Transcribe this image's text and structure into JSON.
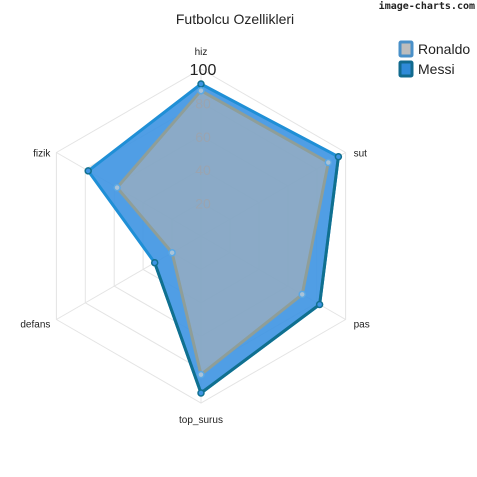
{
  "watermark": "image-charts.com",
  "chart_data": {
    "type": "radar",
    "title": "Futbolcu Ozellikleri",
    "axes": [
      "hiz",
      "sut",
      "pas",
      "top_surus",
      "defans",
      "fizik"
    ],
    "rlim": [
      0,
      100
    ],
    "r_ticks": [
      20,
      40,
      60,
      80,
      100
    ],
    "grid": true,
    "legend_position": "top-right",
    "series": [
      {
        "name": "Ronaldo",
        "values": [
          87,
          88,
          70,
          83,
          20,
          58
        ],
        "fill_color": "#b3b3b3",
        "stroke_color": "#8f9e98"
      },
      {
        "name": "Messi",
        "values": [
          91,
          95,
          82,
          94,
          32,
          78
        ],
        "fill_color": "#3d94e2",
        "stroke_color": "#1f8fd6"
      }
    ],
    "legend_markers": {
      "Ronaldo": {
        "fill": "#bdbdbd",
        "stroke": "#4a90c8"
      },
      "Messi": {
        "fill": "#2f8ad8",
        "stroke": "#116a8e"
      }
    },
    "vertex_outline_colors": {
      "Ronaldo": "#5ba8e4",
      "Messi": "#10708f"
    }
  }
}
